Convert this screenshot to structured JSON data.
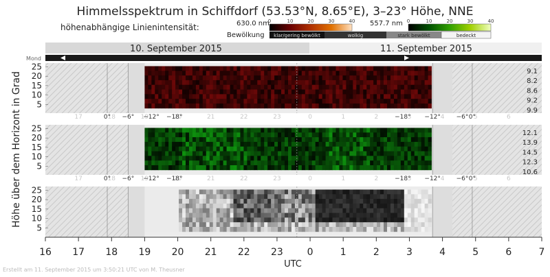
{
  "title": "Himmelsspektrum in Schiffdorf (53.53°N, 8.65°E), 3–23° Höhe, NNE",
  "legend": {
    "label_intensity": "höhenabhängige Linienintensität:",
    "label_clouds": "Bewölkung",
    "red": {
      "name": "630.0 nm",
      "ticks": [
        "0",
        "10",
        "20",
        "30",
        "40"
      ],
      "color": "#b03000"
    },
    "green": {
      "name": "557.7 nm",
      "ticks": [
        "0",
        "10",
        "20",
        "30",
        "40"
      ],
      "color": "#60c000"
    },
    "clouds": [
      "klar/gering bewölkt",
      "wolkig",
      "stark bewölkt",
      "bedeckt"
    ]
  },
  "dates": {
    "left": "10. September 2015",
    "right": "11. September 2015"
  },
  "moon_label": "Mond",
  "y_axis_label": "Höhe über dem Horizont in Grad",
  "x_axis_label": "UTC",
  "footer": "Erstellt am 11. September 2015 um 3:50:21 UTC von M. Theusner",
  "twilight_labels": [
    "0°",
    "−6°",
    "−12°",
    "−18°",
    "−18°",
    "−12°",
    "−6°",
    "0°"
  ],
  "faint_hours": [
    "17",
    "18",
    "19",
    "20",
    "21",
    "22",
    "23",
    "0",
    "1",
    "2",
    "3",
    "4",
    "5",
    "6"
  ],
  "colors": {
    "red_panel": "#8a1010",
    "green_panel": "#2a8a18",
    "hatch": "#d6d6d6",
    "dark_band": "#1a1a1a"
  },
  "chart_data": [
    {
      "type": "heatmap",
      "panel": "630.0 nm",
      "x": [
        "19:00",
        "03:40"
      ],
      "xlabel": "UTC",
      "ylabel": "Höhe über dem Horizont in Grad",
      "y_ticks": [
        5,
        10,
        15,
        20,
        25
      ],
      "ylim": [
        0,
        27
      ],
      "row_values": [
        9.1,
        8.2,
        8.6,
        9.2,
        9.9
      ]
    },
    {
      "type": "heatmap",
      "panel": "557.7 nm",
      "x": [
        "19:00",
        "03:40"
      ],
      "xlabel": "UTC",
      "ylabel": "Höhe über dem Horizont in Grad",
      "y_ticks": [
        5,
        10,
        15,
        20,
        25
      ],
      "ylim": [
        0,
        27
      ],
      "row_values": [
        12.1,
        13.9,
        14.5,
        12.3,
        10.6
      ]
    },
    {
      "type": "heatmap",
      "panel": "Bewölkung",
      "x": [
        "19:00",
        "03:40"
      ],
      "xlabel": "UTC",
      "ylabel": "Höhe über dem Horizont in Grad",
      "y_ticks": [
        5,
        10,
        15,
        20,
        25
      ],
      "ylim": [
        0,
        27
      ]
    }
  ],
  "x_ticks": [
    "16",
    "17",
    "18",
    "19",
    "20",
    "21",
    "22",
    "23",
    "0",
    "1",
    "2",
    "3",
    "4",
    "5",
    "6",
    "7"
  ]
}
